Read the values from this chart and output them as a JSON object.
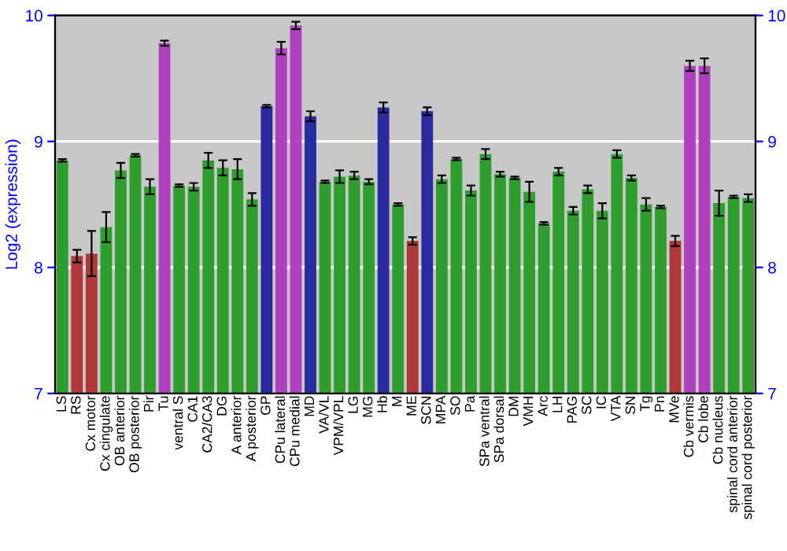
{
  "chart_data": {
    "type": "bar",
    "ylabel": "Log2 (expression)",
    "categories": [
      "LS",
      "RS",
      "Cx motor",
      "Cx cingulate",
      "OB anterior",
      "OB posterior",
      "Pir",
      "Tu",
      "ventral S",
      "CA1",
      "CA2/CA3",
      "DG",
      "A anterior",
      "A posterior",
      "GP",
      "CPu lateral",
      "CPu medial",
      "MD",
      "VA/VL",
      "VPM/VPL",
      "LG",
      "MG",
      "Hb",
      "M",
      "ME",
      "SCN",
      "MPA",
      "SO",
      "Pa",
      "SPa ventral",
      "SPa dorsal",
      "DM",
      "VMH",
      "Arc",
      "LH",
      "PAG",
      "SC",
      "IC",
      "VTA",
      "SN",
      "Tg",
      "Pn",
      "MVe",
      "Cb vermis",
      "Cb lobe",
      "Cb nucleus",
      "spinal cord anterior",
      "spinal cord posterior"
    ],
    "values": [
      8.85,
      8.09,
      8.11,
      8.32,
      8.77,
      8.89,
      8.64,
      9.78,
      8.65,
      8.64,
      8.85,
      8.79,
      8.78,
      8.54,
      9.28,
      9.74,
      9.92,
      9.2,
      8.68,
      8.72,
      8.73,
      8.68,
      9.27,
      8.5,
      8.21,
      9.24,
      8.7,
      8.86,
      8.61,
      8.9,
      8.74,
      8.71,
      8.6,
      8.35,
      8.76,
      8.45,
      8.62,
      8.45,
      8.9,
      8.71,
      8.5,
      8.48,
      8.21,
      9.6,
      9.6,
      8.51,
      8.56,
      8.55
    ],
    "errors": [
      0.01,
      0.05,
      0.18,
      0.12,
      0.06,
      0.01,
      0.06,
      0.02,
      0.01,
      0.03,
      0.06,
      0.06,
      0.08,
      0.05,
      0.01,
      0.05,
      0.03,
      0.04,
      0.01,
      0.05,
      0.03,
      0.02,
      0.04,
      0.01,
      0.03,
      0.03,
      0.03,
      0.01,
      0.04,
      0.04,
      0.02,
      0.01,
      0.08,
      0.01,
      0.03,
      0.03,
      0.03,
      0.06,
      0.03,
      0.02,
      0.05,
      0.01,
      0.04,
      0.04,
      0.06,
      0.1,
      0.01,
      0.03
    ],
    "colors": [
      "#2e9e2e",
      "#b03838",
      "#b03838",
      "#2e9e2e",
      "#2e9e2e",
      "#2e9e2e",
      "#2e9e2e",
      "#b040c0",
      "#2e9e2e",
      "#2e9e2e",
      "#2e9e2e",
      "#2e9e2e",
      "#2e9e2e",
      "#2e9e2e",
      "#2a2aa0",
      "#b040c0",
      "#b040c0",
      "#2a2aa0",
      "#2e9e2e",
      "#2e9e2e",
      "#2e9e2e",
      "#2e9e2e",
      "#2a2aa0",
      "#2e9e2e",
      "#b03838",
      "#2a2aa0",
      "#2e9e2e",
      "#2e9e2e",
      "#2e9e2e",
      "#2e9e2e",
      "#2e9e2e",
      "#2e9e2e",
      "#2e9e2e",
      "#2e9e2e",
      "#2e9e2e",
      "#2e9e2e",
      "#2e9e2e",
      "#2e9e2e",
      "#2e9e2e",
      "#2e9e2e",
      "#2e9e2e",
      "#2e9e2e",
      "#b03838",
      "#b040c0",
      "#b040c0",
      "#2e9e2e",
      "#2e9e2e",
      "#2e9e2e"
    ],
    "ylim": [
      7,
      10
    ],
    "yticks": [
      7,
      8,
      9,
      10
    ],
    "y2lim": [
      7,
      10
    ],
    "y2ticks": [
      7,
      8,
      9,
      10
    ],
    "grid": "y"
  }
}
